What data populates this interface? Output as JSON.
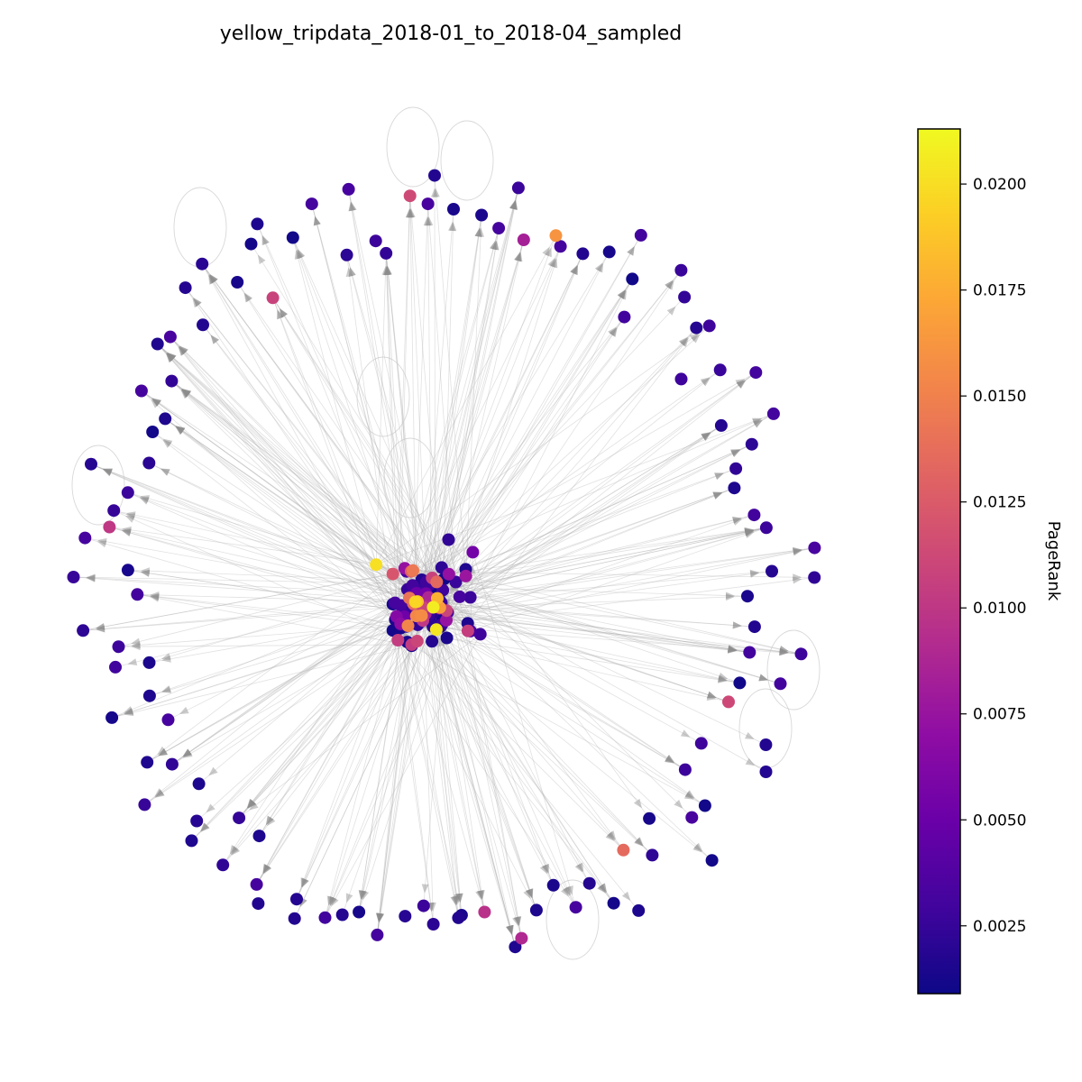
{
  "figure": {
    "title": "yellow_tripdata_2018-01_to_2018-04_sampled"
  },
  "colorbar": {
    "label": "PageRank",
    "min": 0.0009,
    "max": 0.0213,
    "colormap": "plasma",
    "ticks": [
      {
        "value": 0.0025,
        "label": "0.0025"
      },
      {
        "value": 0.005,
        "label": "0.0050"
      },
      {
        "value": 0.0075,
        "label": "0.0075"
      },
      {
        "value": 0.01,
        "label": "0.0100"
      },
      {
        "value": 0.0125,
        "label": "0.0125"
      },
      {
        "value": 0.015,
        "label": "0.0150"
      },
      {
        "value": 0.0175,
        "label": "0.0175"
      },
      {
        "value": 0.02,
        "label": "0.0200"
      }
    ]
  },
  "colors": {
    "edge": "#b0b0b0",
    "arrow": "#8c8c8c",
    "selfloop": "#c8c8c8"
  }
}
